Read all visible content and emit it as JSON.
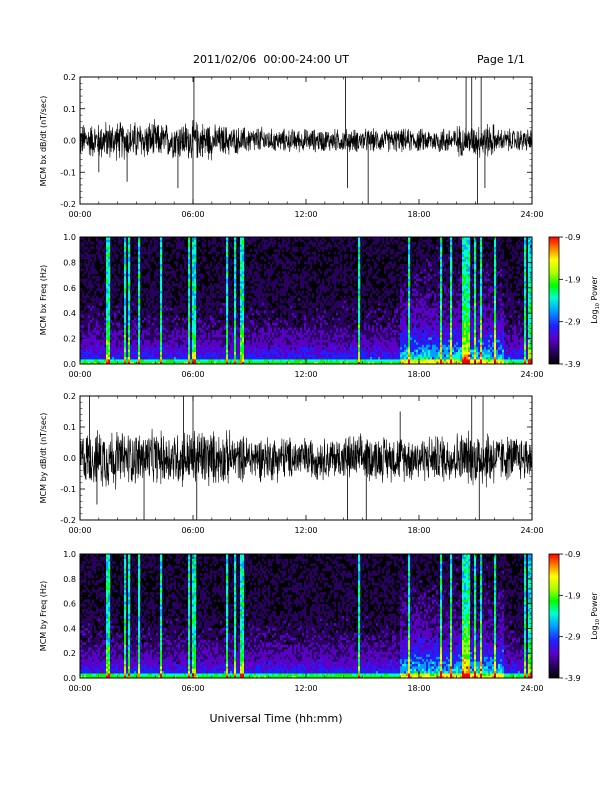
{
  "header": {
    "title": "2011/02/06  00:00-24:00 UT",
    "page": "Page 1/1"
  },
  "footer": {
    "xlabel": "Universal Time (hh:mm)"
  },
  "colors": {
    "trace": "#000000",
    "spectrogram_background": "#000000",
    "colormap": [
      "#000000",
      "#2a0060",
      "#5a00c8",
      "#2020ff",
      "#00a0ff",
      "#00ffd0",
      "#00ff00",
      "#b0ff00",
      "#ffff00",
      "#ff8000",
      "#ff0000"
    ]
  },
  "chart_data": [
    {
      "type": "line",
      "ylabel": "MCM bx dB/dt (nT/sec)",
      "xlim": [
        0,
        24
      ],
      "ylim": [
        -0.2,
        0.2
      ],
      "xticks": [
        "00:00",
        "06:00",
        "12:00",
        "18:00",
        "24:00"
      ],
      "yticks": [
        "-0.2",
        "-0.1",
        "0.0",
        "0.1",
        "0.2"
      ],
      "grid": false,
      "noise_amplitude_by_hour": [
        0.045,
        0.05,
        0.05,
        0.05,
        0.045,
        0.05,
        0.05,
        0.04,
        0.035,
        0.035,
        0.03,
        0.03,
        0.03,
        0.03,
        0.03,
        0.03,
        0.03,
        0.03,
        0.03,
        0.035,
        0.04,
        0.045,
        0.03,
        0.03
      ],
      "spikes": [
        {
          "t": 6.0,
          "value": -0.2
        },
        {
          "t": 6.05,
          "value": 0.2
        },
        {
          "t": 2.5,
          "value": -0.13
        },
        {
          "t": 1.0,
          "value": -0.1
        },
        {
          "t": 5.2,
          "value": -0.15
        },
        {
          "t": 14.1,
          "value": 0.2
        },
        {
          "t": 14.2,
          "value": -0.15
        },
        {
          "t": 15.3,
          "value": -0.2
        },
        {
          "t": 20.5,
          "value": 0.2
        },
        {
          "t": 20.8,
          "value": 0.2
        },
        {
          "t": 21.1,
          "value": -0.2
        },
        {
          "t": 21.3,
          "value": 0.2
        },
        {
          "t": 21.5,
          "value": -0.15
        }
      ]
    },
    {
      "type": "heatmap",
      "ylabel": "MCM bx Freq (Hz)",
      "colorbar_label": "Log10 Power",
      "xlim": [
        0,
        24
      ],
      "ylim": [
        0,
        1.0
      ],
      "xticks": [
        "00:00",
        "06:00",
        "12:00",
        "18:00",
        "24:00"
      ],
      "yticks": [
        "0.0",
        "0.2",
        "0.4",
        "0.6",
        "0.8",
        "1.0"
      ],
      "colorbar_ticks": [
        "-0.9",
        "-1.9",
        "-2.9",
        "-3.9"
      ],
      "colorbar_range": [
        -3.9,
        -0.9
      ],
      "bright_columns_hours": [
        1.5,
        2.4,
        2.6,
        3.1,
        4.3,
        5.8,
        6.0,
        6.1,
        7.8,
        8.2,
        8.6,
        14.8,
        17.5,
        19.2,
        19.7,
        20.4,
        20.6,
        21.0,
        21.3,
        22.0,
        23.6,
        23.9
      ],
      "low_freq_enhancement_hours": [
        17.0,
        22.5
      ]
    },
    {
      "type": "line",
      "ylabel": "MCM by dB/dt (nT/sec)",
      "xlim": [
        0,
        24
      ],
      "ylim": [
        -0.2,
        0.2
      ],
      "xticks": [
        "00:00",
        "06:00",
        "12:00",
        "18:00",
        "24:00"
      ],
      "yticks": [
        "-0.2",
        "-0.1",
        "0.0",
        "0.1",
        "0.2"
      ],
      "grid": false,
      "noise_amplitude_by_hour": [
        0.07,
        0.08,
        0.07,
        0.07,
        0.07,
        0.075,
        0.08,
        0.07,
        0.06,
        0.06,
        0.06,
        0.055,
        0.055,
        0.055,
        0.06,
        0.06,
        0.06,
        0.06,
        0.06,
        0.065,
        0.07,
        0.08,
        0.06,
        0.06
      ],
      "spikes": [
        {
          "t": 0.5,
          "value": 0.2
        },
        {
          "t": 0.9,
          "value": -0.15
        },
        {
          "t": 3.4,
          "value": -0.2
        },
        {
          "t": 5.5,
          "value": 0.2
        },
        {
          "t": 6.0,
          "value": 0.2
        },
        {
          "t": 6.2,
          "value": -0.2
        },
        {
          "t": 14.2,
          "value": -0.2
        },
        {
          "t": 15.2,
          "value": -0.2
        },
        {
          "t": 17.0,
          "value": 0.15
        },
        {
          "t": 20.8,
          "value": 0.2
        },
        {
          "t": 21.2,
          "value": -0.2
        },
        {
          "t": 21.4,
          "value": 0.2
        }
      ]
    },
    {
      "type": "heatmap",
      "ylabel": "MCM by Freq (Hz)",
      "colorbar_label": "Log10 Power",
      "xlim": [
        0,
        24
      ],
      "ylim": [
        0,
        1.0
      ],
      "xticks": [
        "00:00",
        "06:00",
        "12:00",
        "18:00",
        "24:00"
      ],
      "yticks": [
        "0.0",
        "0.2",
        "0.4",
        "0.6",
        "0.8",
        "1.0"
      ],
      "colorbar_ticks": [
        "-0.9",
        "-1.9",
        "-2.9",
        "-3.9"
      ],
      "colorbar_range": [
        -3.9,
        -0.9
      ],
      "bright_columns_hours": [
        1.5,
        2.4,
        2.6,
        3.1,
        4.3,
        5.8,
        6.0,
        6.1,
        7.8,
        8.2,
        8.6,
        14.8,
        17.5,
        19.2,
        19.7,
        20.4,
        20.6,
        21.0,
        21.3,
        22.0,
        23.6,
        23.9
      ],
      "low_freq_enhancement_hours": [
        17.0,
        22.5
      ]
    }
  ]
}
